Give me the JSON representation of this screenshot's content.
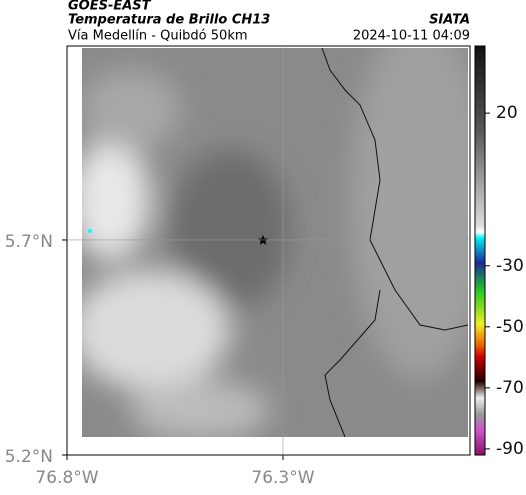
{
  "header": {
    "title": "GOES-EAST",
    "subtitle": "Temperatura de Brillo CH13",
    "region": "Vía Medellín - Quibdó 50km",
    "source": "SIATA",
    "datetime": "2024-10-11 04:09"
  },
  "map": {
    "xlim": [
      -76.8,
      -75.867
    ],
    "ylim": [
      5.2,
      6.151
    ],
    "xticks": [
      {
        "value": -76.8,
        "label": "76.8°W"
      },
      {
        "value": -76.3,
        "label": "76.3°W"
      }
    ],
    "yticks": [
      {
        "value": 5.2,
        "label": "5.2°N"
      },
      {
        "value": 5.7,
        "label": "5.7°N"
      }
    ],
    "grid": true
  },
  "colorbar": {
    "lim": [
      -92,
      42
    ],
    "ticks": [
      20,
      -30,
      -50,
      -70,
      -90
    ]
  }
}
